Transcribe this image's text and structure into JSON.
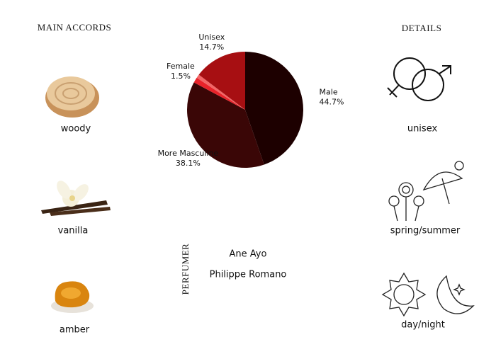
{
  "main_accords": {
    "title": "MAIN ACCORDS",
    "items": [
      "woody",
      "vanilla",
      "amber"
    ]
  },
  "details": {
    "title": "DETAILS",
    "items": [
      "unisex",
      "spring/summer",
      "day/night"
    ]
  },
  "perfumer": {
    "title": "PERFUMER",
    "names": [
      "Ane Ayo",
      "Philippe Romano"
    ]
  },
  "chart_data": {
    "type": "pie",
    "categories": [
      "Male",
      "More Masculine",
      "Female",
      null,
      "Unisex"
    ],
    "values": [
      44.7,
      38.1,
      1.5,
      1,
      14.7
    ],
    "value_labels": [
      "44.7%",
      "38.1%",
      "1.5%",
      null,
      "14.7%"
    ],
    "colors": [
      "#1d0000",
      "#3a0606",
      "#e8232a",
      "#f26767",
      "#a70f12"
    ]
  }
}
